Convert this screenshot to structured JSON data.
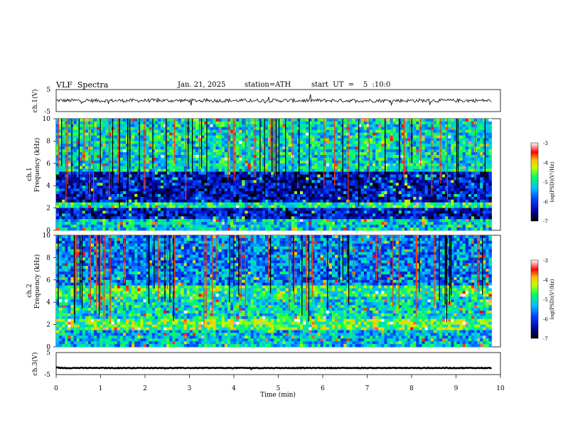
{
  "header": {
    "title": "VLF  Spectra",
    "date": "Jan. 21, 2025",
    "station": "station=ATH",
    "start": "start  UT  =    5  :10:0"
  },
  "chart_data": [
    {
      "type": "line",
      "id": "ch1",
      "ylabel": "ch.1(V)",
      "yticks": [
        "5",
        "-5"
      ],
      "ylim": [
        -5,
        5
      ],
      "xlim": [
        0,
        10
      ],
      "data_extent_min": [
        0,
        9.8
      ],
      "series": [
        {
          "description_values": "noisy trace centered near 0 V, amplitude about ±1 V with spikes",
          "mean": 0.0,
          "amplitude": 0.8
        }
      ]
    },
    {
      "type": "heatmap",
      "id": "ch1-spectrogram",
      "ylabel_top": "ch.1",
      "ylabel": "Frequency  (kHz)",
      "yticks": [
        "0",
        "2",
        "4",
        "6",
        "8",
        "10"
      ],
      "ylim": [
        0,
        10
      ],
      "xlim": [
        0,
        10
      ],
      "data_extent_min": [
        0,
        9.8
      ],
      "colorbar": {
        "label": "log(PSD)(V²/Hz)",
        "ticks": [
          "-3",
          "-4",
          "-5",
          "-6",
          "-7"
        ],
        "range": [
          -7,
          -3
        ]
      },
      "bands_khz": [
        {
          "from": 0,
          "to": 1,
          "level": -5.2
        },
        {
          "from": 1,
          "to": 2,
          "level": -6.3
        },
        {
          "from": 2,
          "to": 2.5,
          "level": -4.9
        },
        {
          "from": 2.5,
          "to": 5.2,
          "level": -6.3
        },
        {
          "from": 5.2,
          "to": 10,
          "level": -5.1
        }
      ]
    },
    {
      "type": "heatmap",
      "id": "ch2-spectrogram",
      "ylabel_top": "ch.2",
      "ylabel": "Frequency  (kHz)",
      "yticks": [
        "0",
        "2",
        "4",
        "6",
        "8",
        "10"
      ],
      "ylim": [
        0,
        10
      ],
      "xlim": [
        0,
        10
      ],
      "data_extent_min": [
        0,
        9.8
      ],
      "colorbar": {
        "label": "log(PSD)(V²/Hz)",
        "ticks": [
          "-3",
          "-4",
          "-5",
          "-6",
          "-7"
        ],
        "range": [
          -7,
          -3
        ]
      },
      "bands_khz": [
        {
          "from": 0,
          "to": 1.5,
          "level": -5.3
        },
        {
          "from": 1.5,
          "to": 2.5,
          "level": -4.6
        },
        {
          "from": 2.5,
          "to": 4.5,
          "level": -5.1
        },
        {
          "from": 4.5,
          "to": 5.5,
          "level": -4.8
        },
        {
          "from": 5.5,
          "to": 10,
          "level": -5.6
        }
      ]
    },
    {
      "type": "line",
      "id": "ch3",
      "ylabel": "ch.3(V)",
      "yticks": [
        "5",
        "-5"
      ],
      "ylim": [
        -5,
        5
      ],
      "xlim": [
        0,
        10
      ],
      "xlabel": "Time  (min)",
      "xticks": [
        "0",
        "1",
        "2",
        "3",
        "4",
        "5",
        "6",
        "7",
        "8",
        "9",
        "10"
      ],
      "data_extent_min": [
        0,
        9.8
      ],
      "series": [
        {
          "description_values": "flat thick trace near -2 V",
          "mean": -2.0,
          "amplitude": 0.15
        }
      ]
    }
  ]
}
